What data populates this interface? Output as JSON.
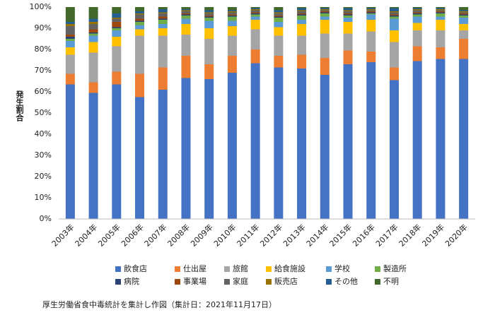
{
  "chart_data": {
    "type": "stacked_bar",
    "y_label": "発生割合",
    "note": "厚生労働省食中毒統計を集計し作図（集計日：2021年11月17日）",
    "categories": [
      "2003年",
      "2004年",
      "2005年",
      "2006年",
      "2007年",
      "2008年",
      "2009年",
      "2010年",
      "2011年",
      "2012年",
      "2013年",
      "2014年",
      "2015年",
      "2016年",
      "2017年",
      "2018年",
      "2019年",
      "2020年"
    ],
    "ylim": [
      0,
      100
    ],
    "yticks": [
      {
        "value": 0,
        "label": "0%"
      },
      {
        "value": 10,
        "label": "10%"
      },
      {
        "value": 20,
        "label": "20%"
      },
      {
        "value": 30,
        "label": "30%"
      },
      {
        "value": 40,
        "label": "40%"
      },
      {
        "value": 50,
        "label": "50%"
      },
      {
        "value": 60,
        "label": "60%"
      },
      {
        "value": 70,
        "label": "70%"
      },
      {
        "value": 80,
        "label": "80%"
      },
      {
        "value": 90,
        "label": "90%"
      },
      {
        "value": 100,
        "label": "100%"
      }
    ],
    "grid": false,
    "series": [
      {
        "name": "飲食店",
        "color": "#4472c4",
        "values": [
          63.5,
          59.5,
          63.5,
          57.5,
          61,
          66.5,
          66,
          69,
          73.5,
          71.5,
          71,
          68,
          73,
          74,
          65.5,
          74.5,
          75.5,
          75.5
        ]
      },
      {
        "name": "仕出屋",
        "color": "#ed7d31",
        "values": [
          5,
          5,
          6,
          11,
          10.5,
          10.5,
          7,
          8,
          6.5,
          5.5,
          6.5,
          8,
          6.5,
          5,
          6,
          7,
          5.5,
          9.5
        ]
      },
      {
        "name": "旅館",
        "color": "#a5a5a5",
        "values": [
          9,
          14,
          12,
          18,
          15,
          10,
          12,
          9.5,
          9.5,
          9.5,
          9,
          11.5,
          8,
          9.5,
          12,
          7.5,
          8,
          4
        ]
      },
      {
        "name": "給食施設",
        "color": "#ffc000",
        "values": [
          3.5,
          5,
          4.5,
          3,
          3.5,
          5,
          5,
          4.5,
          4.5,
          4,
          5.5,
          6.5,
          5.5,
          5.5,
          5.5,
          3.5,
          5,
          3
        ]
      },
      {
        "name": "学校",
        "color": "#5b9bd5",
        "values": [
          3,
          3,
          3,
          2,
          2,
          2.5,
          3.5,
          2.5,
          1.5,
          2.5,
          2,
          1.5,
          2,
          2.5,
          5.5,
          3,
          1.5,
          3
        ]
      },
      {
        "name": "製造所",
        "color": "#70ad47",
        "values": [
          1,
          1,
          1,
          1.5,
          2,
          1.5,
          1.5,
          2,
          1,
          2,
          2,
          1.5,
          1,
          0.5,
          1,
          1,
          1.5,
          1
        ]
      },
      {
        "name": "病院",
        "color": "#264478",
        "values": [
          1,
          0.5,
          0.5,
          0.5,
          0.5,
          0.5,
          0.5,
          0.5,
          0.5,
          0.5,
          0.5,
          0.5,
          0.5,
          0.5,
          0.5,
          0.5,
          0.5,
          0.5
        ]
      },
      {
        "name": "事業場",
        "color": "#9e480e",
        "values": [
          1,
          1.5,
          2.5,
          1,
          1,
          0.5,
          0.5,
          0.5,
          0.5,
          0.5,
          0.5,
          0.5,
          0.5,
          0.5,
          0.5,
          0.5,
          0.5,
          0.5
        ]
      },
      {
        "name": "家庭",
        "color": "#636363",
        "values": [
          4,
          2.5,
          1.5,
          2,
          1.5,
          1,
          1,
          1,
          1,
          1,
          1,
          0.5,
          1,
          0.5,
          1,
          1,
          0.5,
          0.5
        ]
      },
      {
        "name": "販売店",
        "color": "#997300",
        "values": [
          1,
          1,
          0.5,
          0.5,
          0.5,
          0.5,
          0.5,
          0.5,
          0.5,
          0.5,
          0.5,
          0.5,
          0.5,
          0.5,
          0.5,
          0.5,
          0.5,
          0.5
        ]
      },
      {
        "name": "その他",
        "color": "#255e91",
        "values": [
          1,
          1.5,
          2,
          1,
          1.5,
          0.5,
          1,
          0.5,
          0.5,
          1,
          1,
          0.5,
          1,
          0.5,
          1.5,
          0.5,
          0.5,
          0.5
        ]
      },
      {
        "name": "不明",
        "color": "#43682b",
        "values": [
          7,
          5.5,
          3,
          2,
          1,
          1,
          1.5,
          1.5,
          0.5,
          1.5,
          0.5,
          0.5,
          0.5,
          0.5,
          0.5,
          0.5,
          0.5,
          1.5
        ]
      }
    ]
  }
}
